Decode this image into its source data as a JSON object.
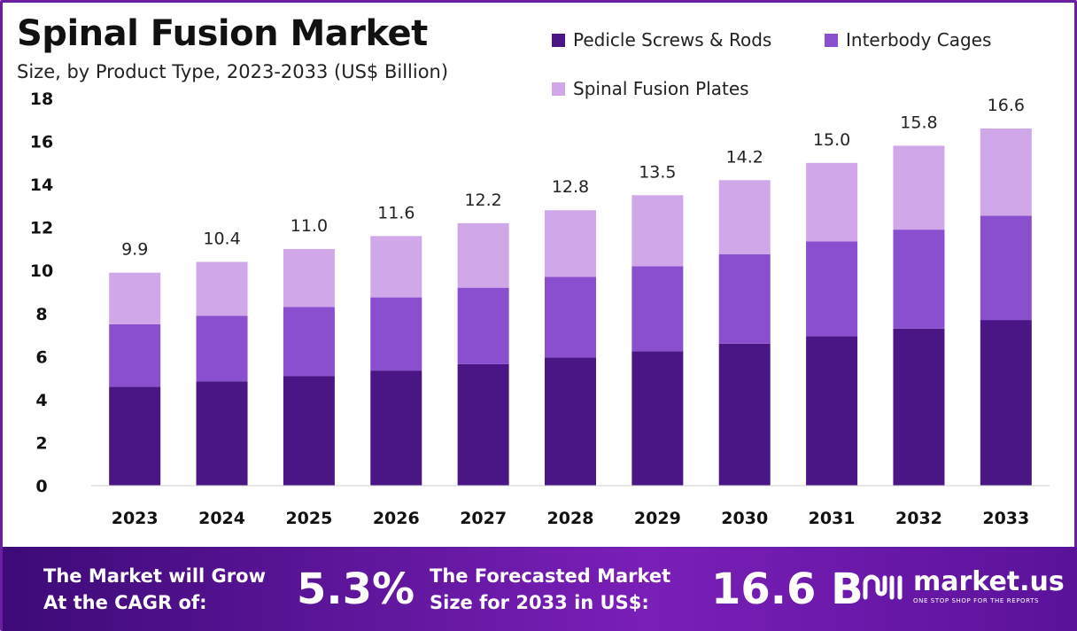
{
  "header": {
    "title": "Spinal Fusion Market",
    "subtitle": "Size, by Product Type, 2023-2033 (US$ Billion)"
  },
  "colors": {
    "pedicle": "#4a1585",
    "interbody": "#8a4fcf",
    "plates": "#d0a8ea",
    "footer_start": "#3d0a78",
    "footer_end": "#7a1fb8"
  },
  "chart_data": {
    "type": "bar",
    "stacked": true,
    "categories": [
      "2023",
      "2024",
      "2025",
      "2026",
      "2027",
      "2028",
      "2029",
      "2030",
      "2031",
      "2032",
      "2033"
    ],
    "series": [
      {
        "name": "Pedicle Screws & Rods",
        "values": [
          4.6,
          4.85,
          5.1,
          5.35,
          5.65,
          5.95,
          6.25,
          6.6,
          6.95,
          7.3,
          7.7
        ]
      },
      {
        "name": "Interbody Cages",
        "values": [
          2.9,
          3.05,
          3.2,
          3.4,
          3.55,
          3.75,
          3.95,
          4.15,
          4.4,
          4.6,
          4.85
        ]
      },
      {
        "name": "Spinal Fusion Plates",
        "values": [
          2.4,
          2.5,
          2.7,
          2.85,
          3.0,
          3.1,
          3.3,
          3.45,
          3.65,
          3.9,
          4.05
        ]
      }
    ],
    "totals": [
      "9.9",
      "10.4",
      "11.0",
      "11.6",
      "12.2",
      "12.8",
      "13.5",
      "14.2",
      "15.0",
      "15.8",
      "16.6"
    ],
    "yticks": [
      0,
      2,
      4,
      6,
      8,
      10,
      12,
      14,
      16,
      18
    ],
    "ylim": [
      0,
      18
    ],
    "legend_position": "top-right",
    "grid": false
  },
  "footer": {
    "cagr_label_line1": "The Market will Grow",
    "cagr_label_line2": "At the CAGR of:",
    "cagr_value": "5.3%",
    "forecast_label_line1": "The Forecasted Market",
    "forecast_label_line2": "Size for 2033 in US$:",
    "forecast_value": "16.6 B",
    "brand_name": "market.us",
    "brand_tagline": "ONE STOP SHOP FOR THE REPORTS"
  }
}
